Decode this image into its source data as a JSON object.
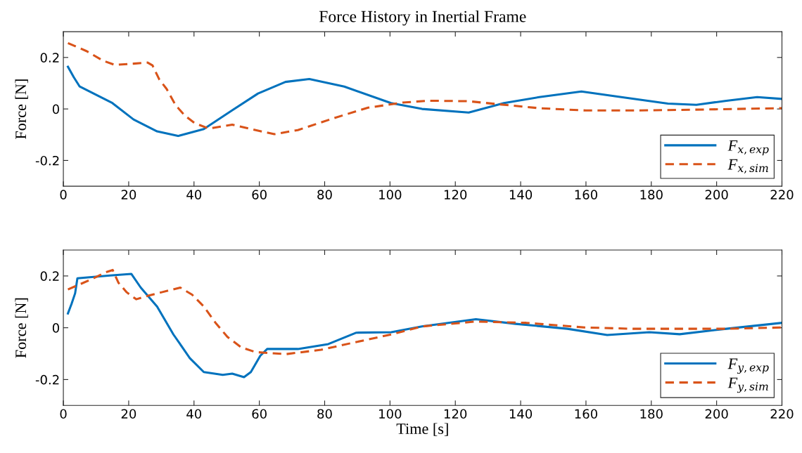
{
  "chart_data": [
    {
      "type": "line",
      "title": "Force History in Inertial Frame",
      "ylabel": "Force [N]",
      "xlim": [
        0,
        220
      ],
      "xticks": [
        0,
        20,
        40,
        60,
        80,
        100,
        120,
        140,
        160,
        180,
        200,
        220
      ],
      "ylim": [
        -0.3,
        0.3
      ],
      "yticks": [
        {
          "value": -0.2,
          "label": "-0.2"
        },
        0,
        0.2
      ],
      "grid": false,
      "legend": "bottom right",
      "series": [
        {
          "name": "F$_{x,exp}$",
          "color": "#0072bd",
          "line_style": "solid",
          "x": [
            1.4,
            3.2,
            5.0,
            15,
            21.5,
            28.7,
            35.1,
            43,
            51.7,
            59.6,
            68,
            75.3,
            86,
            100.3,
            109.8,
            124.1,
            134.9,
            145.7,
            158.6,
            170.8,
            185.1,
            193.8,
            203,
            212.4,
            220
          ],
          "values": [
            0.164,
            0.123,
            0.087,
            0.023,
            -0.041,
            -0.087,
            -0.105,
            -0.078,
            -0.005,
            0.06,
            0.105,
            0.116,
            0.087,
            0.023,
            0,
            -0.014,
            0.023,
            0.046,
            0.068,
            0.046,
            0.021,
            0.016,
            0.032,
            0.046,
            0.039
          ]
        },
        {
          "name": "F$_{x,sim}$",
          "color": "#d95319",
          "line_style": "dashed",
          "x": [
            1.4,
            7.2,
            12.2,
            15.8,
            21.5,
            25.8,
            27.3,
            29.4,
            31.6,
            34.4,
            37.3,
            40.2,
            44.5,
            51.7,
            57.4,
            64.6,
            71.8,
            82.5,
            93.3,
            104,
            111.9,
            124.1,
            133.4,
            145.7,
            160,
            174.4,
            192.3,
            220
          ],
          "values": [
            0.256,
            0.224,
            0.187,
            0.171,
            0.176,
            0.18,
            0.169,
            0.114,
            0.078,
            0.014,
            -0.027,
            -0.055,
            -0.076,
            -0.061,
            -0.078,
            -0.098,
            -0.082,
            -0.037,
            0.005,
            0.025,
            0.032,
            0.03,
            0.018,
            0.003,
            -0.006,
            -0.006,
            -0.003,
            0.003
          ]
        }
      ]
    },
    {
      "type": "line",
      "xlabel": "Time [s]",
      "ylabel": "Force [N]",
      "xlim": [
        0,
        220
      ],
      "xticks": [
        0,
        20,
        40,
        60,
        80,
        100,
        120,
        140,
        160,
        180,
        200,
        220
      ],
      "ylim": [
        -0.3,
        0.3
      ],
      "yticks": [
        {
          "value": -0.2,
          "label": "-0.2"
        },
        0,
        0.2
      ],
      "grid": false,
      "legend": "bottom right",
      "series": [
        {
          "name": "F$_{y,exp}$",
          "color": "#0072bd",
          "line_style": "solid",
          "x": [
            1.4,
            2.5,
            3.6,
            4.3,
            14.3,
            20.8,
            23.7,
            28.7,
            33.7,
            38.7,
            43,
            48.8,
            51.7,
            55.3,
            57.4,
            60.3,
            62.4,
            71.8,
            81.1,
            89.7,
            100.4,
            109.8,
            126.3,
            138.5,
            154.3,
            166.5,
            179.4,
            188.7,
            203,
            220
          ],
          "values": [
            0.055,
            0.092,
            0.133,
            0.191,
            0.202,
            0.208,
            0.155,
            0.082,
            -0.026,
            -0.117,
            -0.171,
            -0.182,
            -0.177,
            -0.191,
            -0.171,
            -0.108,
            -0.082,
            -0.082,
            -0.063,
            -0.019,
            -0.017,
            0.005,
            0.033,
            0.015,
            -0.004,
            -0.028,
            -0.017,
            -0.025,
            -0.004,
            0.019
          ]
        },
        {
          "name": "F$_{y,sim}$",
          "color": "#d95319",
          "line_style": "dashed",
          "x": [
            1.4,
            8.6,
            12.9,
            15.1,
            16.9,
            19.4,
            22.3,
            25.8,
            30.1,
            35.8,
            39.4,
            43,
            46.6,
            50.2,
            54.5,
            58.8,
            68.1,
            78.9,
            89.7,
            100.4,
            109.8,
            126.3,
            141.7,
            159.6,
            174.4,
            188.7,
            203,
            220
          ],
          "values": [
            0.148,
            0.187,
            0.214,
            0.223,
            0.173,
            0.137,
            0.11,
            0.123,
            0.137,
            0.155,
            0.128,
            0.082,
            0.019,
            -0.035,
            -0.076,
            -0.094,
            -0.102,
            -0.085,
            -0.055,
            -0.026,
            0.005,
            0.024,
            0.019,
            0.001,
            -0.004,
            -0.004,
            -0.004,
            0.001
          ]
        }
      ]
    }
  ]
}
